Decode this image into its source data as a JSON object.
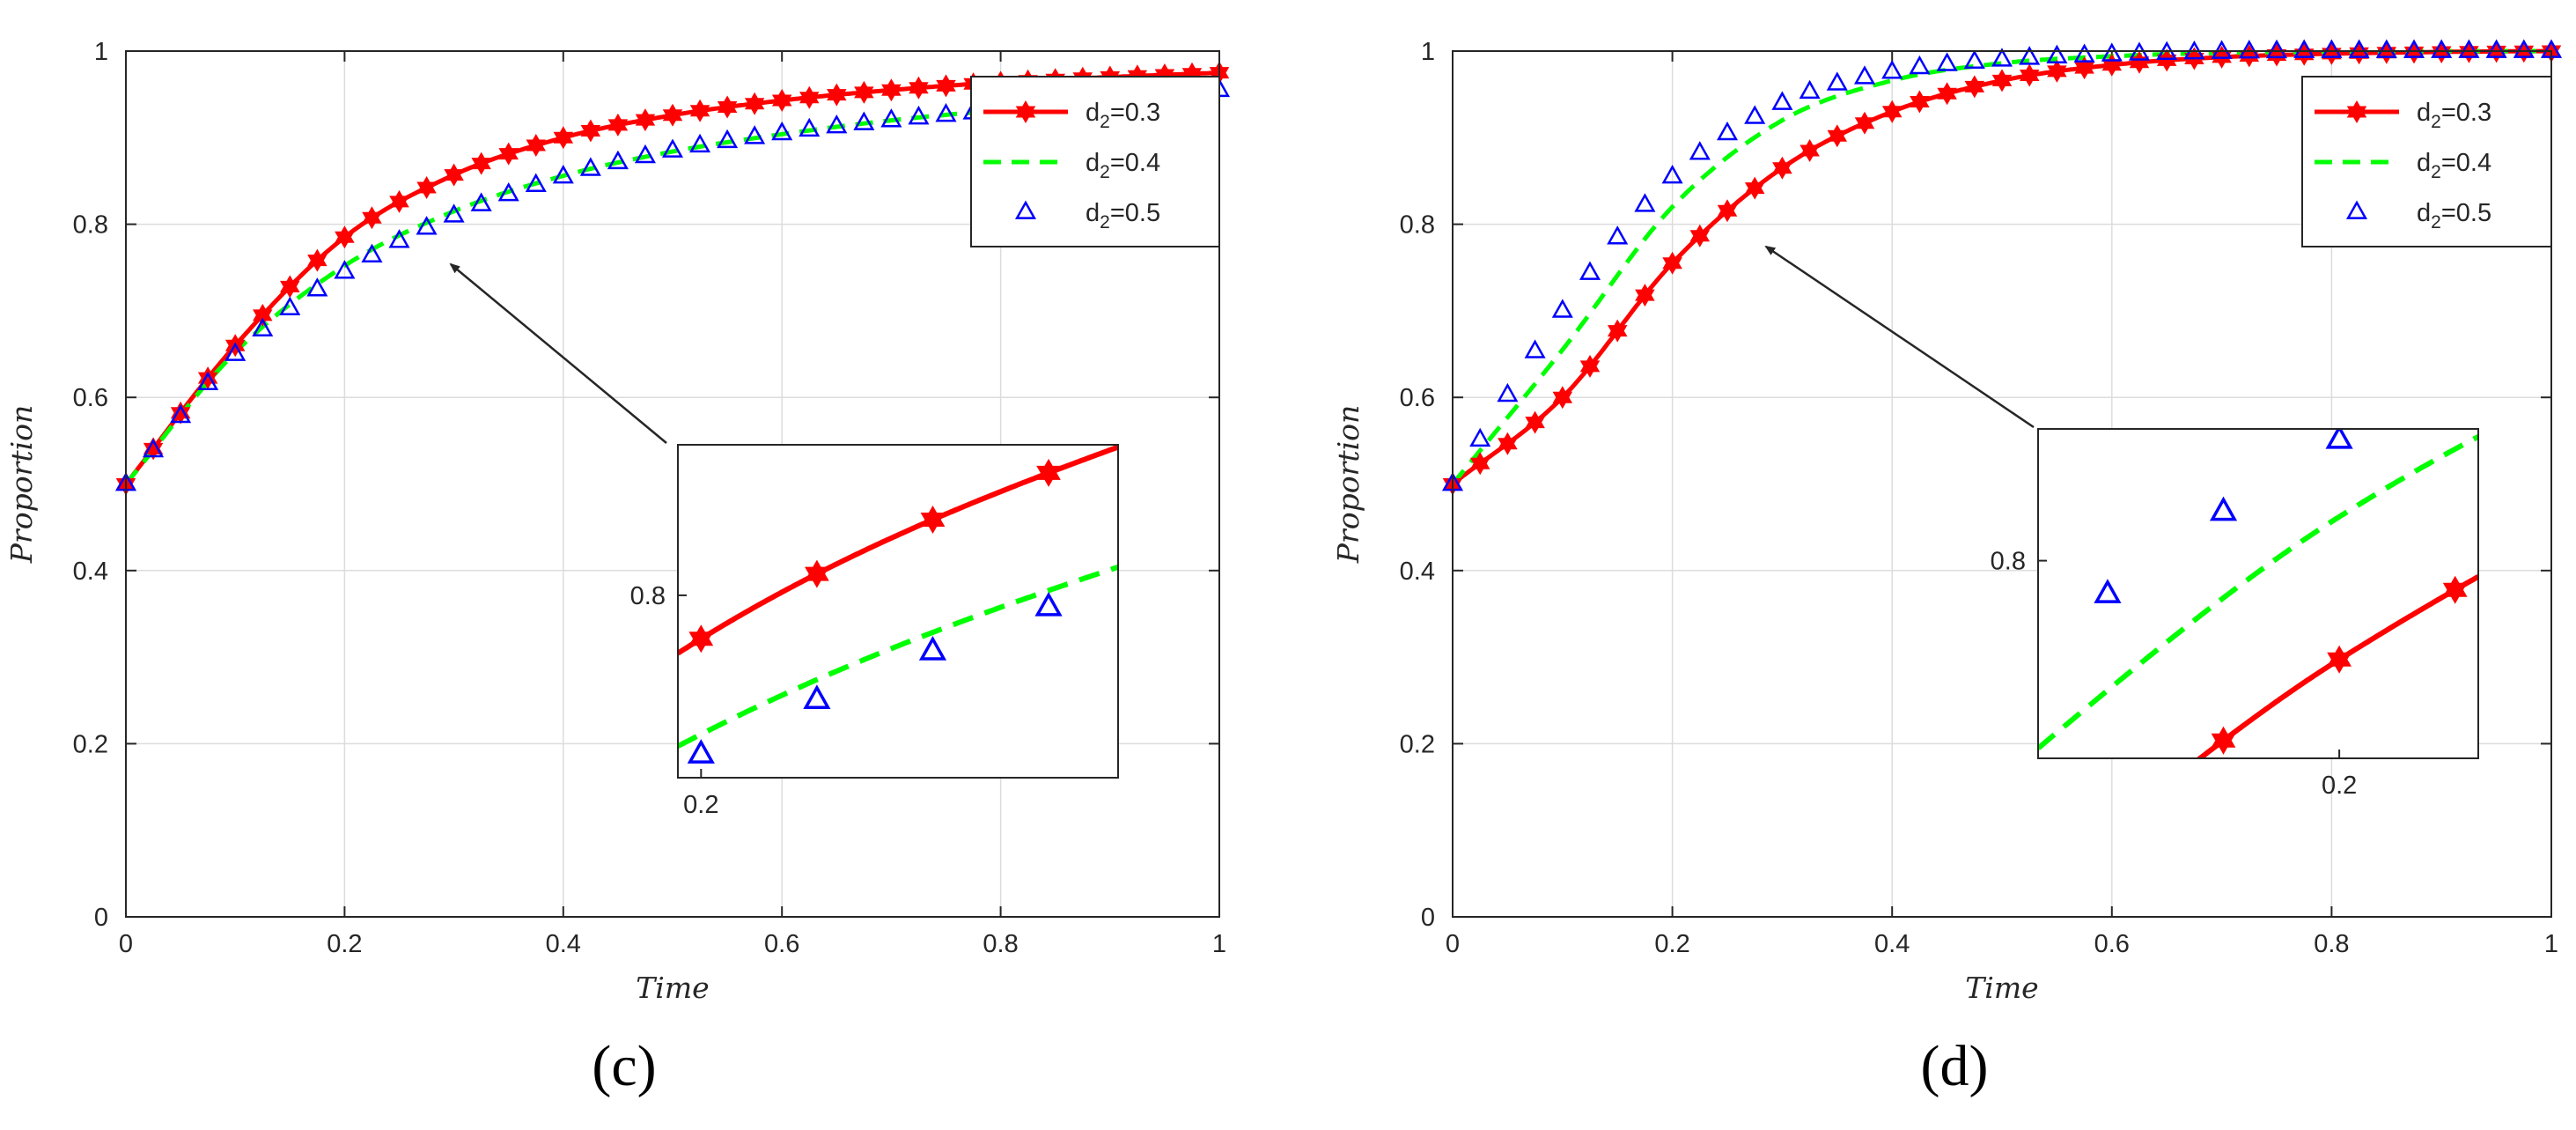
{
  "colors": {
    "series_0": "#ff0000",
    "series_1": "#00ff00",
    "series_2": "#0000ff",
    "axis": "#262626",
    "grid": "#dcdcdc",
    "arrow": "#262626"
  },
  "chart_data": [
    {
      "type": "line",
      "panel_label": "(c)",
      "xlabel": "Time",
      "ylabel": "Proportion",
      "xlim": [
        0,
        1
      ],
      "ylim": [
        0,
        1
      ],
      "xticks": [
        "0",
        "0.2",
        "0.4",
        "0.6",
        "0.8",
        "1"
      ],
      "yticks": [
        "0",
        "0.2",
        "0.4",
        "0.6",
        "0.8",
        "1"
      ],
      "grid": true,
      "legend_position": "top-right",
      "x": [
        0,
        0.1,
        0.2,
        0.3,
        0.4,
        0.5,
        0.6,
        0.7,
        0.8,
        0.9,
        1.0
      ],
      "series": [
        {
          "name_base": "d",
          "name_sub": "2",
          "name_suffix": "=0.3",
          "marker": "hexagram",
          "line": "solid",
          "values": [
            0.5,
            0.66,
            0.785,
            0.857,
            0.9,
            0.926,
            0.943,
            0.955,
            0.964,
            0.97,
            0.975
          ]
        },
        {
          "name_base": "d",
          "name_sub": "2",
          "name_suffix": "=0.4",
          "marker": "none",
          "line": "dashed",
          "values": [
            0.5,
            0.652,
            0.752,
            0.815,
            0.856,
            0.884,
            0.904,
            0.92,
            0.932,
            0.942,
            0.95
          ]
        },
        {
          "name_base": "d",
          "name_sub": "2",
          "name_suffix": "=0.5",
          "marker": "triangle",
          "line": "none",
          "values": [
            0.5,
            0.65,
            0.745,
            0.81,
            0.855,
            0.885,
            0.905,
            0.92,
            0.932,
            0.944,
            0.955
          ]
        }
      ],
      "inset": {
        "xlim": [
          0.195,
          0.29
        ],
        "ylim": [
          0.737,
          0.852
        ],
        "xticks": [
          "0.2"
        ],
        "yticks": [
          "0.8"
        ]
      }
    },
    {
      "type": "line",
      "panel_label": "(d)",
      "xlabel": "Time",
      "ylabel": "Proportion",
      "xlim": [
        0,
        1
      ],
      "ylim": [
        0,
        1
      ],
      "xticks": [
        "0",
        "0.2",
        "0.4",
        "0.6",
        "0.8",
        "1"
      ],
      "yticks": [
        "0",
        "0.2",
        "0.4",
        "0.6",
        "0.8",
        "1"
      ],
      "grid": true,
      "legend_position": "top-right",
      "x": [
        0,
        0.1,
        0.2,
        0.3,
        0.4,
        0.5,
        0.6,
        0.7,
        0.8,
        0.9,
        1.0
      ],
      "series": [
        {
          "name_base": "d",
          "name_sub": "2",
          "name_suffix": "=0.3",
          "marker": "hexagram",
          "line": "solid",
          "values": [
            0.5,
            0.6,
            0.755,
            0.865,
            0.93,
            0.966,
            0.984,
            0.993,
            0.997,
            0.999,
            1.0
          ]
        },
        {
          "name_base": "d",
          "name_sub": "2",
          "name_suffix": "=0.4",
          "marker": "none",
          "line": "dashed",
          "values": [
            0.5,
            0.655,
            0.82,
            0.92,
            0.966,
            0.986,
            0.994,
            0.998,
            0.999,
            1.0,
            1.0
          ]
        },
        {
          "name_base": "d",
          "name_sub": "2",
          "name_suffix": "=0.5",
          "marker": "triangle",
          "line": "none",
          "values": [
            0.5,
            0.7,
            0.855,
            0.94,
            0.976,
            0.99,
            0.996,
            0.999,
            1.0,
            1.0,
            1.0
          ]
        }
      ],
      "inset": {
        "xlim": [
          0.135,
          0.23
        ],
        "ylim": [
          0.71,
          0.86
        ],
        "xticks": [
          "0.2"
        ],
        "yticks": [
          "0.8"
        ]
      }
    }
  ]
}
